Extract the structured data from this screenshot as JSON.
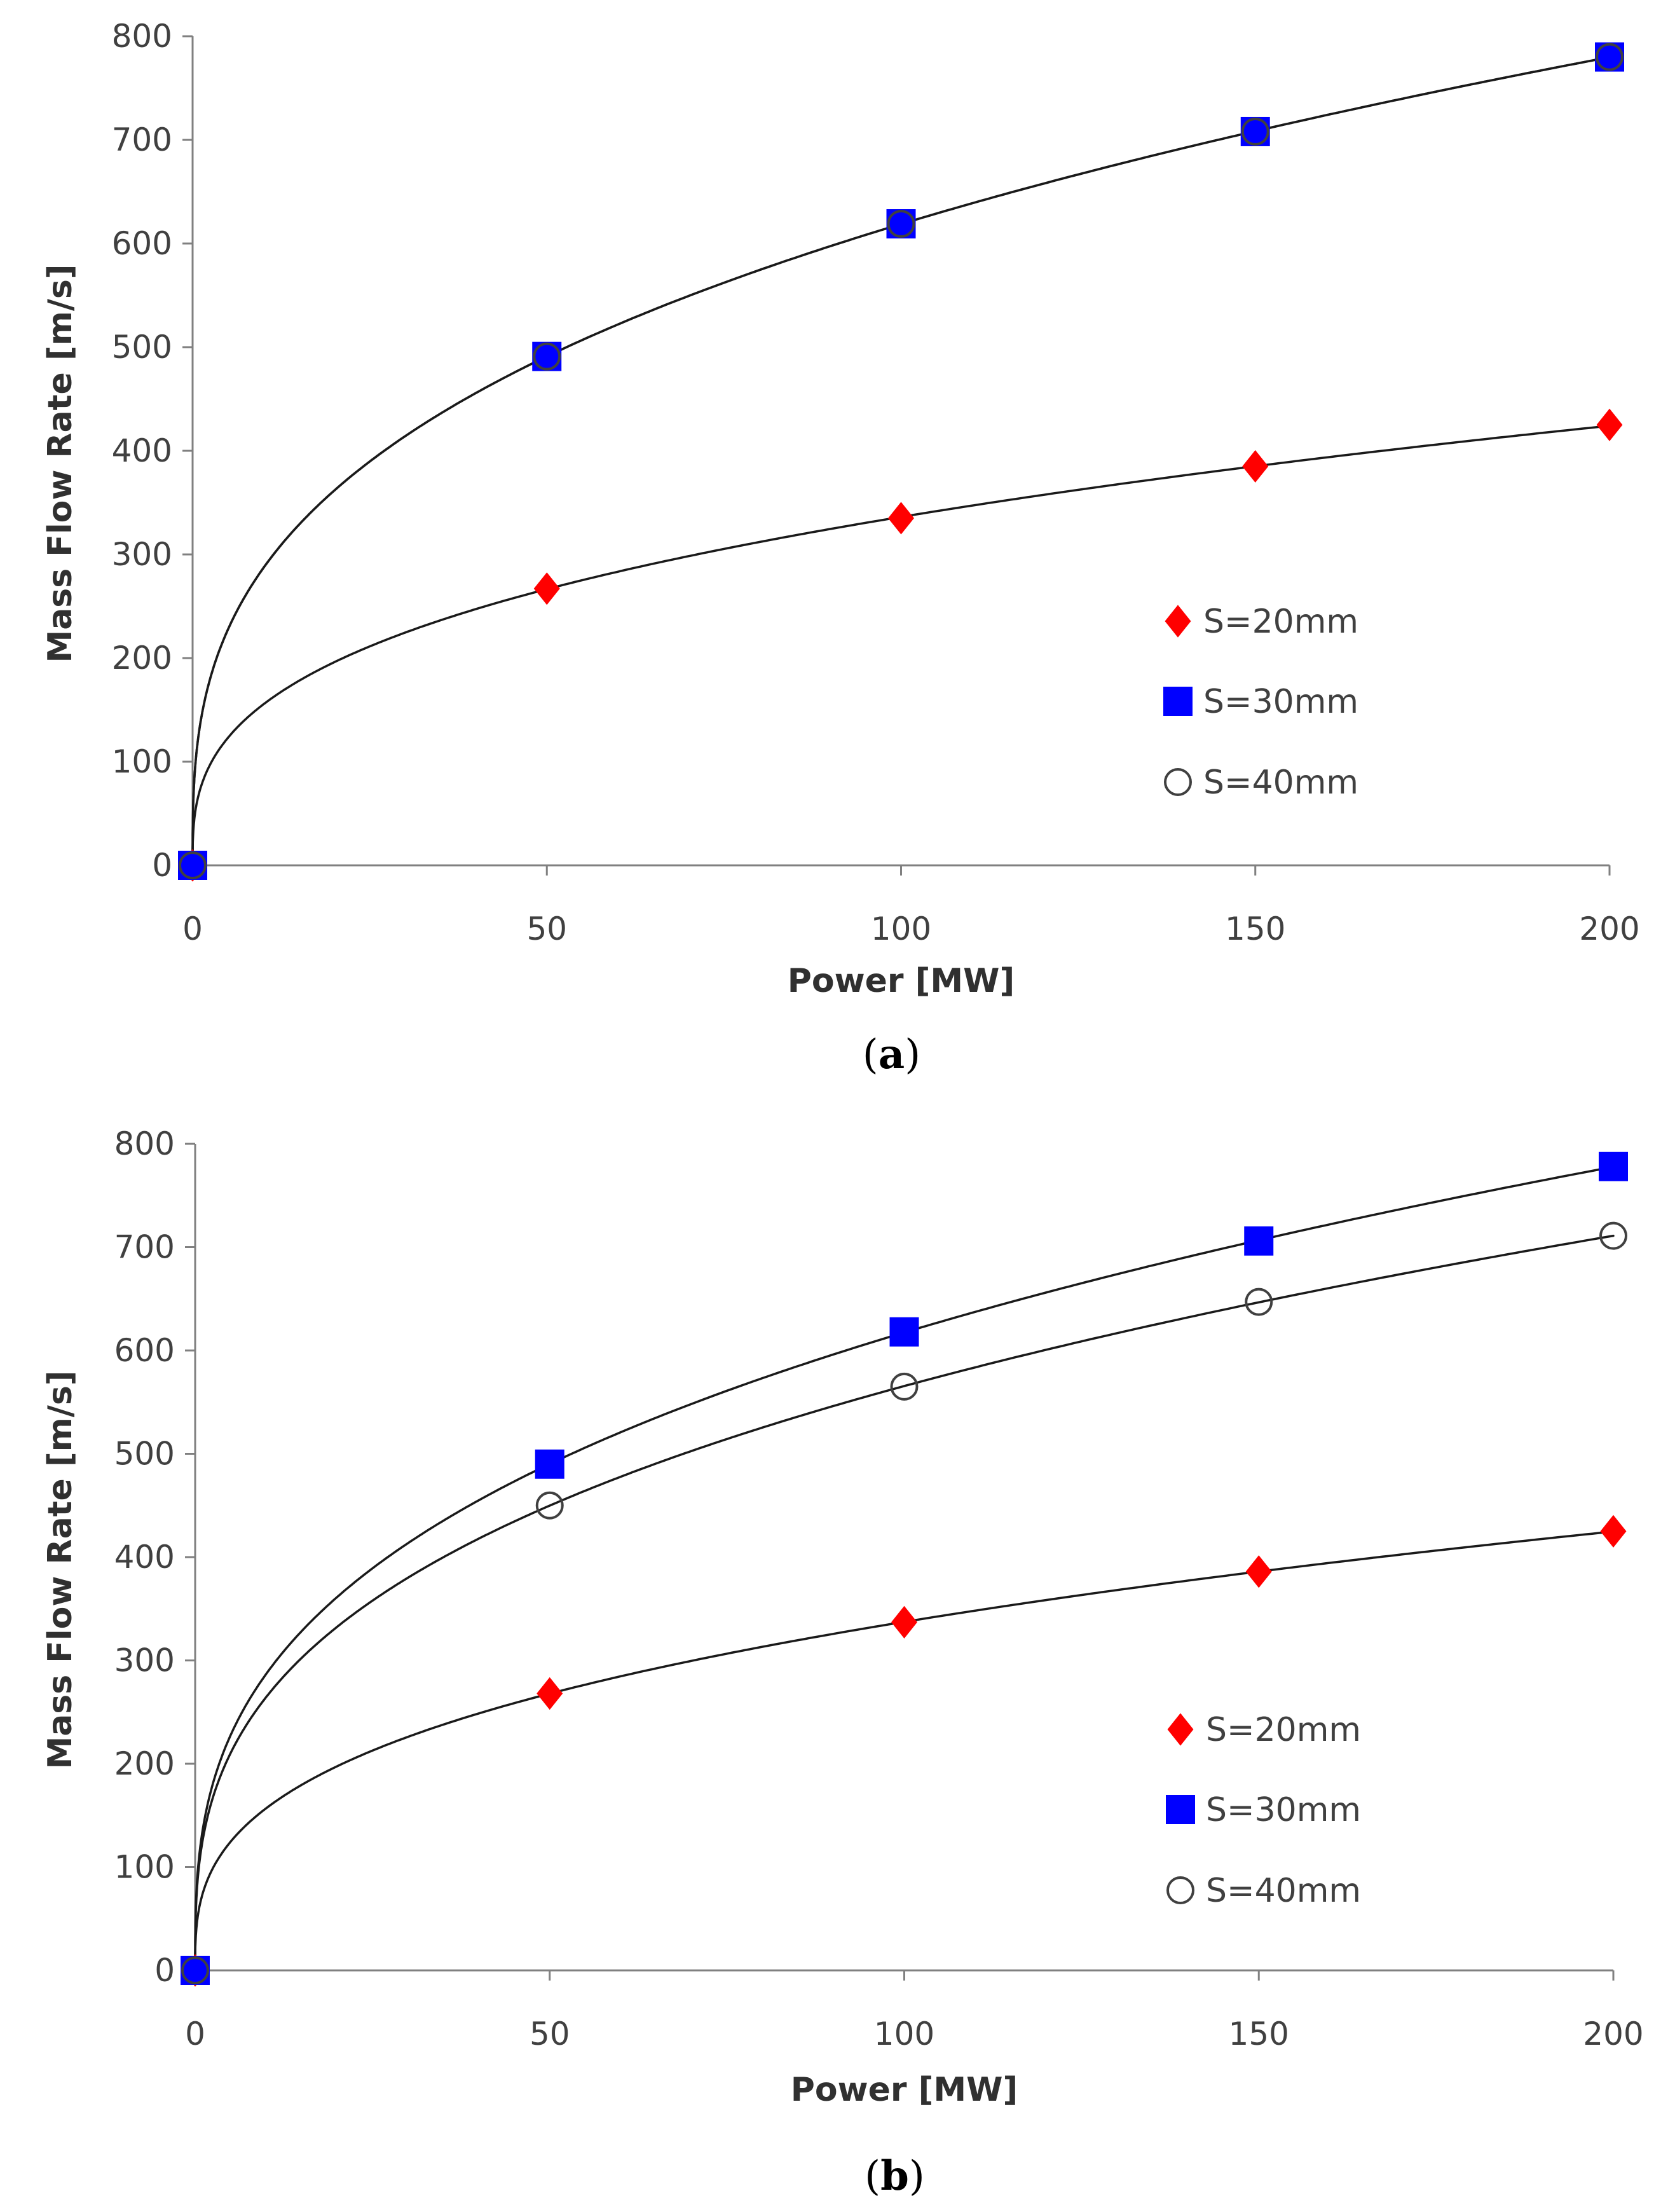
{
  "chart_data": [
    {
      "panel_label": "a",
      "type": "line",
      "title": "",
      "xlabel": "Power [MW]",
      "ylabel": "Mass Flow Rate [m/s]",
      "xlim": [
        0,
        200
      ],
      "ylim": [
        0,
        800
      ],
      "xticks": [
        0,
        50,
        100,
        150,
        200
      ],
      "yticks": [
        0,
        100,
        200,
        300,
        400,
        500,
        600,
        700,
        800
      ],
      "grid": false,
      "legend_position": "right",
      "x": [
        0,
        50,
        100,
        150,
        200
      ],
      "series": [
        {
          "name": "S=20mm",
          "marker": "diamond",
          "color": "#ff0000",
          "values": [
            0,
            267,
            335,
            385,
            425
          ]
        },
        {
          "name": "S=30mm",
          "marker": "square",
          "color": "#0000ff",
          "values": [
            0,
            491,
            619,
            708,
            780
          ]
        },
        {
          "name": "S=40mm",
          "marker": "circle-open",
          "color": "#404040",
          "values": [
            0,
            491,
            619,
            708,
            780
          ]
        }
      ]
    },
    {
      "panel_label": "b",
      "type": "line",
      "title": "",
      "xlabel": "Power [MW]",
      "ylabel": "Mass Flow Rate [m/s]",
      "xlim": [
        0,
        200
      ],
      "ylim": [
        0,
        800
      ],
      "xticks": [
        0,
        50,
        100,
        150,
        200
      ],
      "yticks": [
        0,
        100,
        200,
        300,
        400,
        500,
        600,
        700,
        800
      ],
      "grid": false,
      "legend_position": "right",
      "x": [
        0,
        50,
        100,
        150,
        200
      ],
      "series": [
        {
          "name": "S=20mm",
          "marker": "diamond",
          "color": "#ff0000",
          "values": [
            0,
            268,
            337,
            386,
            425
          ]
        },
        {
          "name": "S=30mm",
          "marker": "square",
          "color": "#0000ff",
          "values": [
            0,
            490,
            618,
            706,
            778
          ]
        },
        {
          "name": "S=40mm",
          "marker": "circle-open",
          "color": "#404040",
          "values": [
            0,
            450,
            565,
            647,
            711
          ]
        }
      ]
    }
  ]
}
